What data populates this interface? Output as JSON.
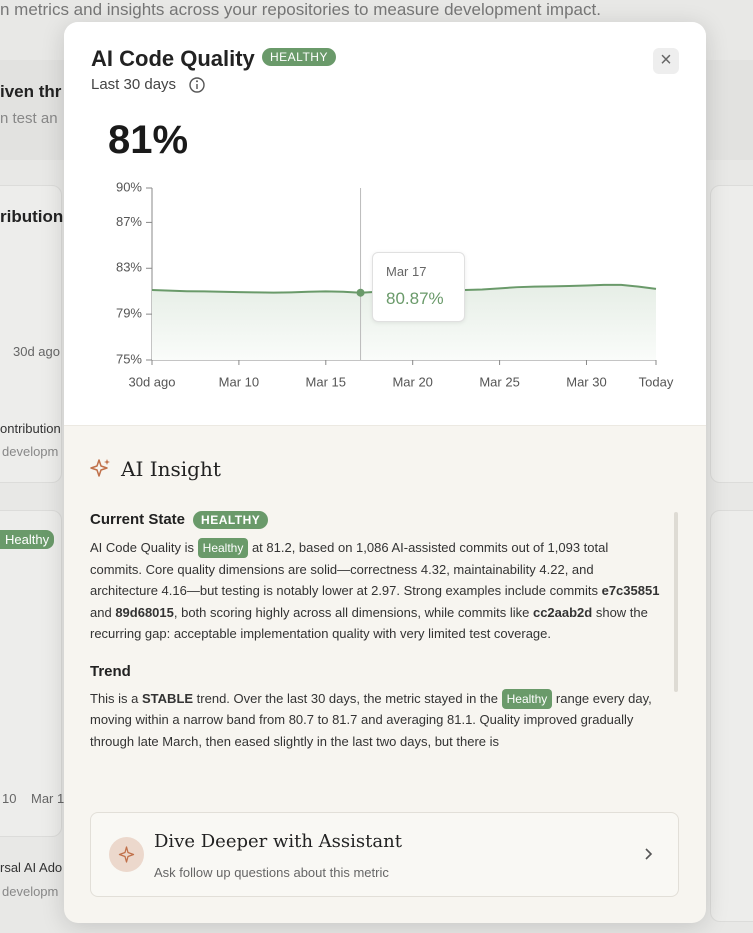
{
  "background": {
    "intro": "n metrics and insights across your repositories to measure development impact.",
    "fragments": [
      "iven thr",
      "n test an",
      "ribution",
      "30d ago",
      "ontribution",
      "developm",
      "Healthy",
      "10",
      "Mar 1",
      "rsal AI Ado",
      "developm"
    ]
  },
  "modal": {
    "title": "AI Code Quality",
    "badge": "HEALTHY",
    "period": "Last 30 days",
    "headline": "81%",
    "close": "×"
  },
  "chart_data": {
    "type": "line",
    "color": "#6a9a6a",
    "categories": [
      "30d ago",
      null,
      null,
      null,
      null,
      "Mar 10",
      null,
      null,
      null,
      null,
      "Mar 15",
      null,
      null,
      null,
      null,
      "Mar 20",
      null,
      null,
      null,
      null,
      "Mar 25",
      null,
      null,
      null,
      null,
      "Mar 30",
      null,
      null,
      null,
      "Today"
    ],
    "values": [
      81.1,
      81.05,
      81.0,
      80.98,
      80.95,
      80.92,
      80.9,
      80.88,
      80.9,
      80.95,
      80.98,
      80.95,
      80.87,
      80.95,
      81.05,
      81.1,
      81.12,
      81.15,
      81.1,
      81.15,
      81.25,
      81.35,
      81.4,
      81.42,
      81.45,
      81.5,
      81.55,
      81.55,
      81.4,
      81.2
    ],
    "ylim": [
      75,
      90
    ],
    "yticks": [
      {
        "value": 75,
        "label": "75%"
      },
      {
        "value": 79,
        "label": "79%"
      },
      {
        "value": 83,
        "label": "83%"
      },
      {
        "value": 87,
        "label": "87%"
      },
      {
        "value": 90,
        "label": "90%"
      }
    ],
    "tooltip": {
      "index": 12,
      "date": "Mar 17",
      "value": "80.87%"
    }
  },
  "insight": {
    "title": "AI Insight",
    "sections": [
      {
        "heading": "Current State",
        "badge": "HEALTHY",
        "parts": [
          {
            "text": "AI Code Quality is "
          },
          {
            "text": "Healthy",
            "style": "badge"
          },
          {
            "text": " at 81.2, based on 1,086 AI-assisted commits out of 1,093 total commits. Core quality dimensions are solid—correctness 4.32, maintainability 4.22, and architecture 4.16—but testing is notably lower at 2.97. Strong examples include commits "
          },
          {
            "text": "e7c35851",
            "style": "bold"
          },
          {
            "text": " and "
          },
          {
            "text": "89d68015",
            "style": "bold"
          },
          {
            "text": ", both scoring highly across all dimensions, while commits like "
          },
          {
            "text": "cc2aab2d",
            "style": "bold"
          },
          {
            "text": " show the recurring gap: acceptable implementation quality with very limited test coverage."
          }
        ]
      },
      {
        "heading": "Trend",
        "parts": [
          {
            "text": "This is a "
          },
          {
            "text": "STABLE",
            "style": "bold"
          },
          {
            "text": " trend. Over the last 30 days, the metric stayed in the "
          },
          {
            "text": "Healthy",
            "style": "badge"
          },
          {
            "text": " range every day, moving within a narrow band from 80.7 to 81.7 and averaging 81.1. Quality improved gradually through late March, then eased slightly in the last two days, but there is"
          }
        ]
      }
    ]
  },
  "assistant": {
    "title": "Dive Deeper with Assistant",
    "subtitle": "Ask follow up questions about this metric"
  }
}
